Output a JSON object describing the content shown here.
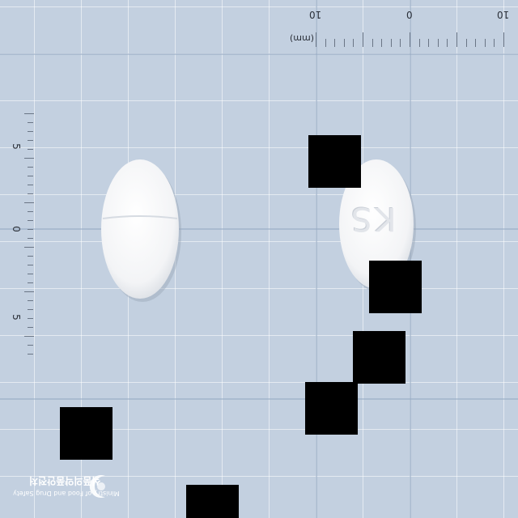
{
  "ruler_top": {
    "unit": "(mm)",
    "labels": [
      "10",
      "0",
      "10"
    ]
  },
  "ruler_left": {
    "labels": [
      "5",
      "0",
      "5"
    ]
  },
  "pill_right": {
    "imprint": "KS"
  },
  "watermark": {
    "korean": "식품의약품안전처",
    "english": "Ministry of Food and Drug Safety"
  },
  "colors": {
    "background": "#c3d0e0",
    "pill": "#f6f7f8",
    "redaction": "#000000"
  }
}
